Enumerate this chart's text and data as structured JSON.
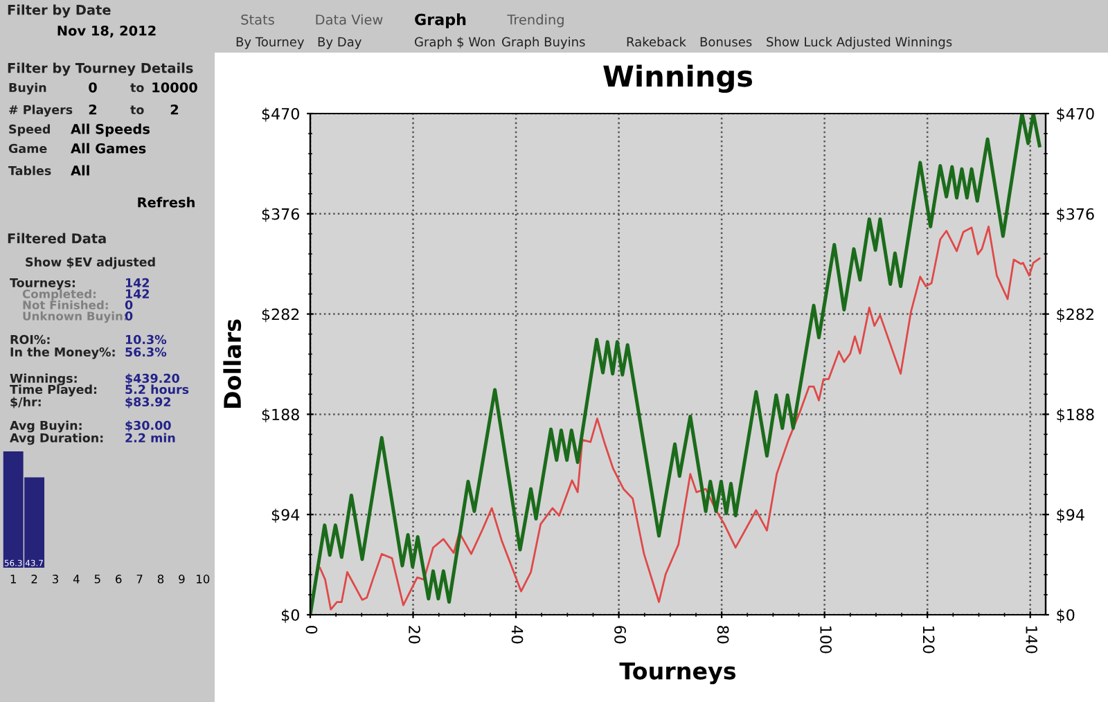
{
  "chart_data": [
    {
      "type": "line",
      "title": "Winnings",
      "xlabel": "Tourneys",
      "ylabel": "Dollars",
      "xlim": [
        0,
        143
      ],
      "xticks": [
        0,
        20,
        40,
        60,
        80,
        100,
        120,
        140
      ],
      "ylim": [
        0,
        470
      ],
      "yticks": [
        {
          "value": 0,
          "label": "$0"
        },
        {
          "value": 94,
          "label": "$94"
        },
        {
          "value": 188,
          "label": "$188"
        },
        {
          "value": 282,
          "label": "$282"
        },
        {
          "value": 376,
          "label": "$376"
        },
        {
          "value": 470,
          "label": "$470"
        }
      ],
      "y2lim": [
        0,
        470
      ],
      "y2ticks": [
        {
          "value": 0,
          "label": "$0"
        },
        {
          "value": 94,
          "label": "$94"
        },
        {
          "value": 188,
          "label": "$188"
        },
        {
          "value": 282,
          "label": "$282"
        },
        {
          "value": 376,
          "label": "$376"
        },
        {
          "value": 470,
          "label": "$470"
        }
      ],
      "grid": true,
      "legend": false,
      "marker": "none",
      "line_style": "solid",
      "series": [
        {
          "color": "#e04848",
          "x": [
            1.9,
            2.9,
            4.0,
            5.2,
            6.1,
            7.2,
            10.1,
            11,
            12.3,
            13.9,
            15.9,
            18.1,
            20.8,
            22.1,
            23.9,
            25.9,
            27.9,
            29,
            31.3,
            33.5,
            35.3,
            37.2,
            41,
            42.9,
            44.8,
            47.1,
            48.4,
            50.9,
            52,
            52.9,
            54.5,
            55.8,
            57.3,
            58.9,
            60.9,
            62.7,
            64.9,
            67.8,
            69.1,
            71.6,
            73.9,
            75.1,
            76.9,
            78.9,
            80.5,
            82.7,
            86.7,
            88.8,
            90.7,
            93,
            95.2,
            97,
            97.9,
            98.9,
            99.8,
            100.8,
            102.8,
            103.8,
            105,
            105.9,
            106.9,
            108.7,
            109.7,
            110.8,
            114.8,
            116.8,
            118.6,
            119.7,
            120.8,
            122.5,
            123.7,
            125.7,
            127,
            128.6,
            129.8,
            130.6,
            131.9,
            133.5,
            135.6,
            136.8,
            138.2,
            138.6,
            139.8,
            140.6,
            141.8
          ],
          "values": [
            44,
            33,
            5,
            12,
            12,
            40,
            14,
            16,
            35,
            57,
            53,
            9,
            35,
            33,
            63,
            71,
            58,
            77,
            57,
            80,
            100,
            70,
            22,
            40,
            85,
            100,
            93,
            126,
            115,
            164,
            162,
            184,
            160,
            137,
            118,
            109,
            57,
            12,
            38,
            66,
            132,
            115,
            118,
            98,
            85,
            63,
            98,
            79,
            132,
            164,
            190,
            214,
            214,
            201,
            221,
            221,
            247,
            237,
            245,
            261,
            245,
            288,
            271,
            281,
            226,
            284,
            317,
            308,
            311,
            352,
            360,
            341,
            359,
            363,
            338,
            343,
            364,
            318,
            296,
            333,
            329,
            330,
            318,
            330,
            334
          ]
        },
        {
          "color": "#1b6b1b",
          "x": [
            0,
            2.8,
            3.8,
            4.9,
            6.1,
            8.0,
            10.1,
            13.9,
            17.9,
            19,
            19.9,
            20.9,
            23,
            23.9,
            24.9,
            25.9,
            27,
            30.7,
            31.9,
            35.9,
            40.8,
            42.9,
            43.9,
            46.8,
            47.9,
            48.8,
            49.9,
            50.8,
            52,
            55.7,
            56.9,
            57.8,
            58.8,
            59.7,
            60.7,
            61.7,
            67.8,
            70.9,
            71.8,
            73.9,
            76.9,
            77.8,
            78.9,
            79.9,
            80.9,
            81.8,
            82.7,
            86.7,
            88.8,
            90.6,
            91.8,
            92.8,
            93.9,
            97.9,
            98.9,
            101.9,
            103.8,
            105.7,
            106.9,
            108.7,
            109.9,
            110.8,
            112.8,
            113.7,
            114.8,
            118.6,
            120.6,
            122.5,
            123.7,
            124.8,
            125.7,
            126.7,
            127.7,
            128.6,
            129.7,
            131.7,
            134.7,
            138.4,
            139.6,
            140.6,
            141.8
          ],
          "values": [
            0,
            84,
            56,
            84,
            54,
            112,
            52,
            166,
            46,
            75,
            45,
            73,
            15,
            41,
            15,
            41,
            12,
            125,
            97,
            211,
            61,
            118,
            90,
            174,
            145,
            173,
            145,
            173,
            143,
            258,
            227,
            256,
            226,
            256,
            225,
            253,
            74,
            160,
            130,
            186,
            97,
            125,
            97,
            125,
            95,
            123,
            93,
            209,
            149,
            206,
            175,
            206,
            175,
            290,
            260,
            347,
            286,
            343,
            314,
            371,
            342,
            371,
            310,
            339,
            308,
            424,
            364,
            421,
            392,
            420,
            391,
            418,
            391,
            418,
            388,
            446,
            355,
            470,
            442,
            470,
            440
          ]
        }
      ]
    },
    {
      "type": "bar",
      "categories": [
        "1",
        "2",
        "3",
        "4",
        "5",
        "6",
        "7",
        "8",
        "9",
        "10"
      ],
      "values": [
        56.3,
        43.7,
        null,
        null,
        null,
        null,
        null,
        null,
        null,
        null
      ],
      "value_labels": [
        "56.3",
        "43.7",
        null,
        null,
        null,
        null,
        null,
        null,
        null,
        null
      ],
      "color": "#25237a"
    },
    {
      "type": "other",
      "annotations": [
        "Filter by Date",
        "Nov 18, 2012",
        "Filter by Tourney Details",
        "Buyin",
        "0",
        "to",
        "10000",
        "# Players",
        "2",
        "to",
        "2",
        "Speed",
        "All Speeds",
        "Game",
        "All Games",
        "Tables",
        "All",
        "Refresh",
        "Filtered Data",
        "Show $EV adjusted",
        "Tourneys:",
        "142",
        "Completed:",
        "142",
        "Not Finished:",
        "0",
        "Unknown Buyin:",
        "0",
        "ROI%:",
        "10.3%",
        "In the Money%:",
        "56.3%",
        "Winnings:",
        "$439.20",
        "Time Played:",
        "5.2 hours",
        "$/hr:",
        "$83.92",
        "Avg Buyin:",
        "$30.00",
        "Avg Duration:",
        "2.2 min",
        "Stats",
        "Data View",
        "Graph",
        "Trending",
        "By Tourney",
        "By Day",
        "Graph $ Won",
        "Graph Buyins",
        "Rakeback",
        "Bonuses",
        "Show Luck Adjusted Winnings"
      ]
    }
  ]
}
